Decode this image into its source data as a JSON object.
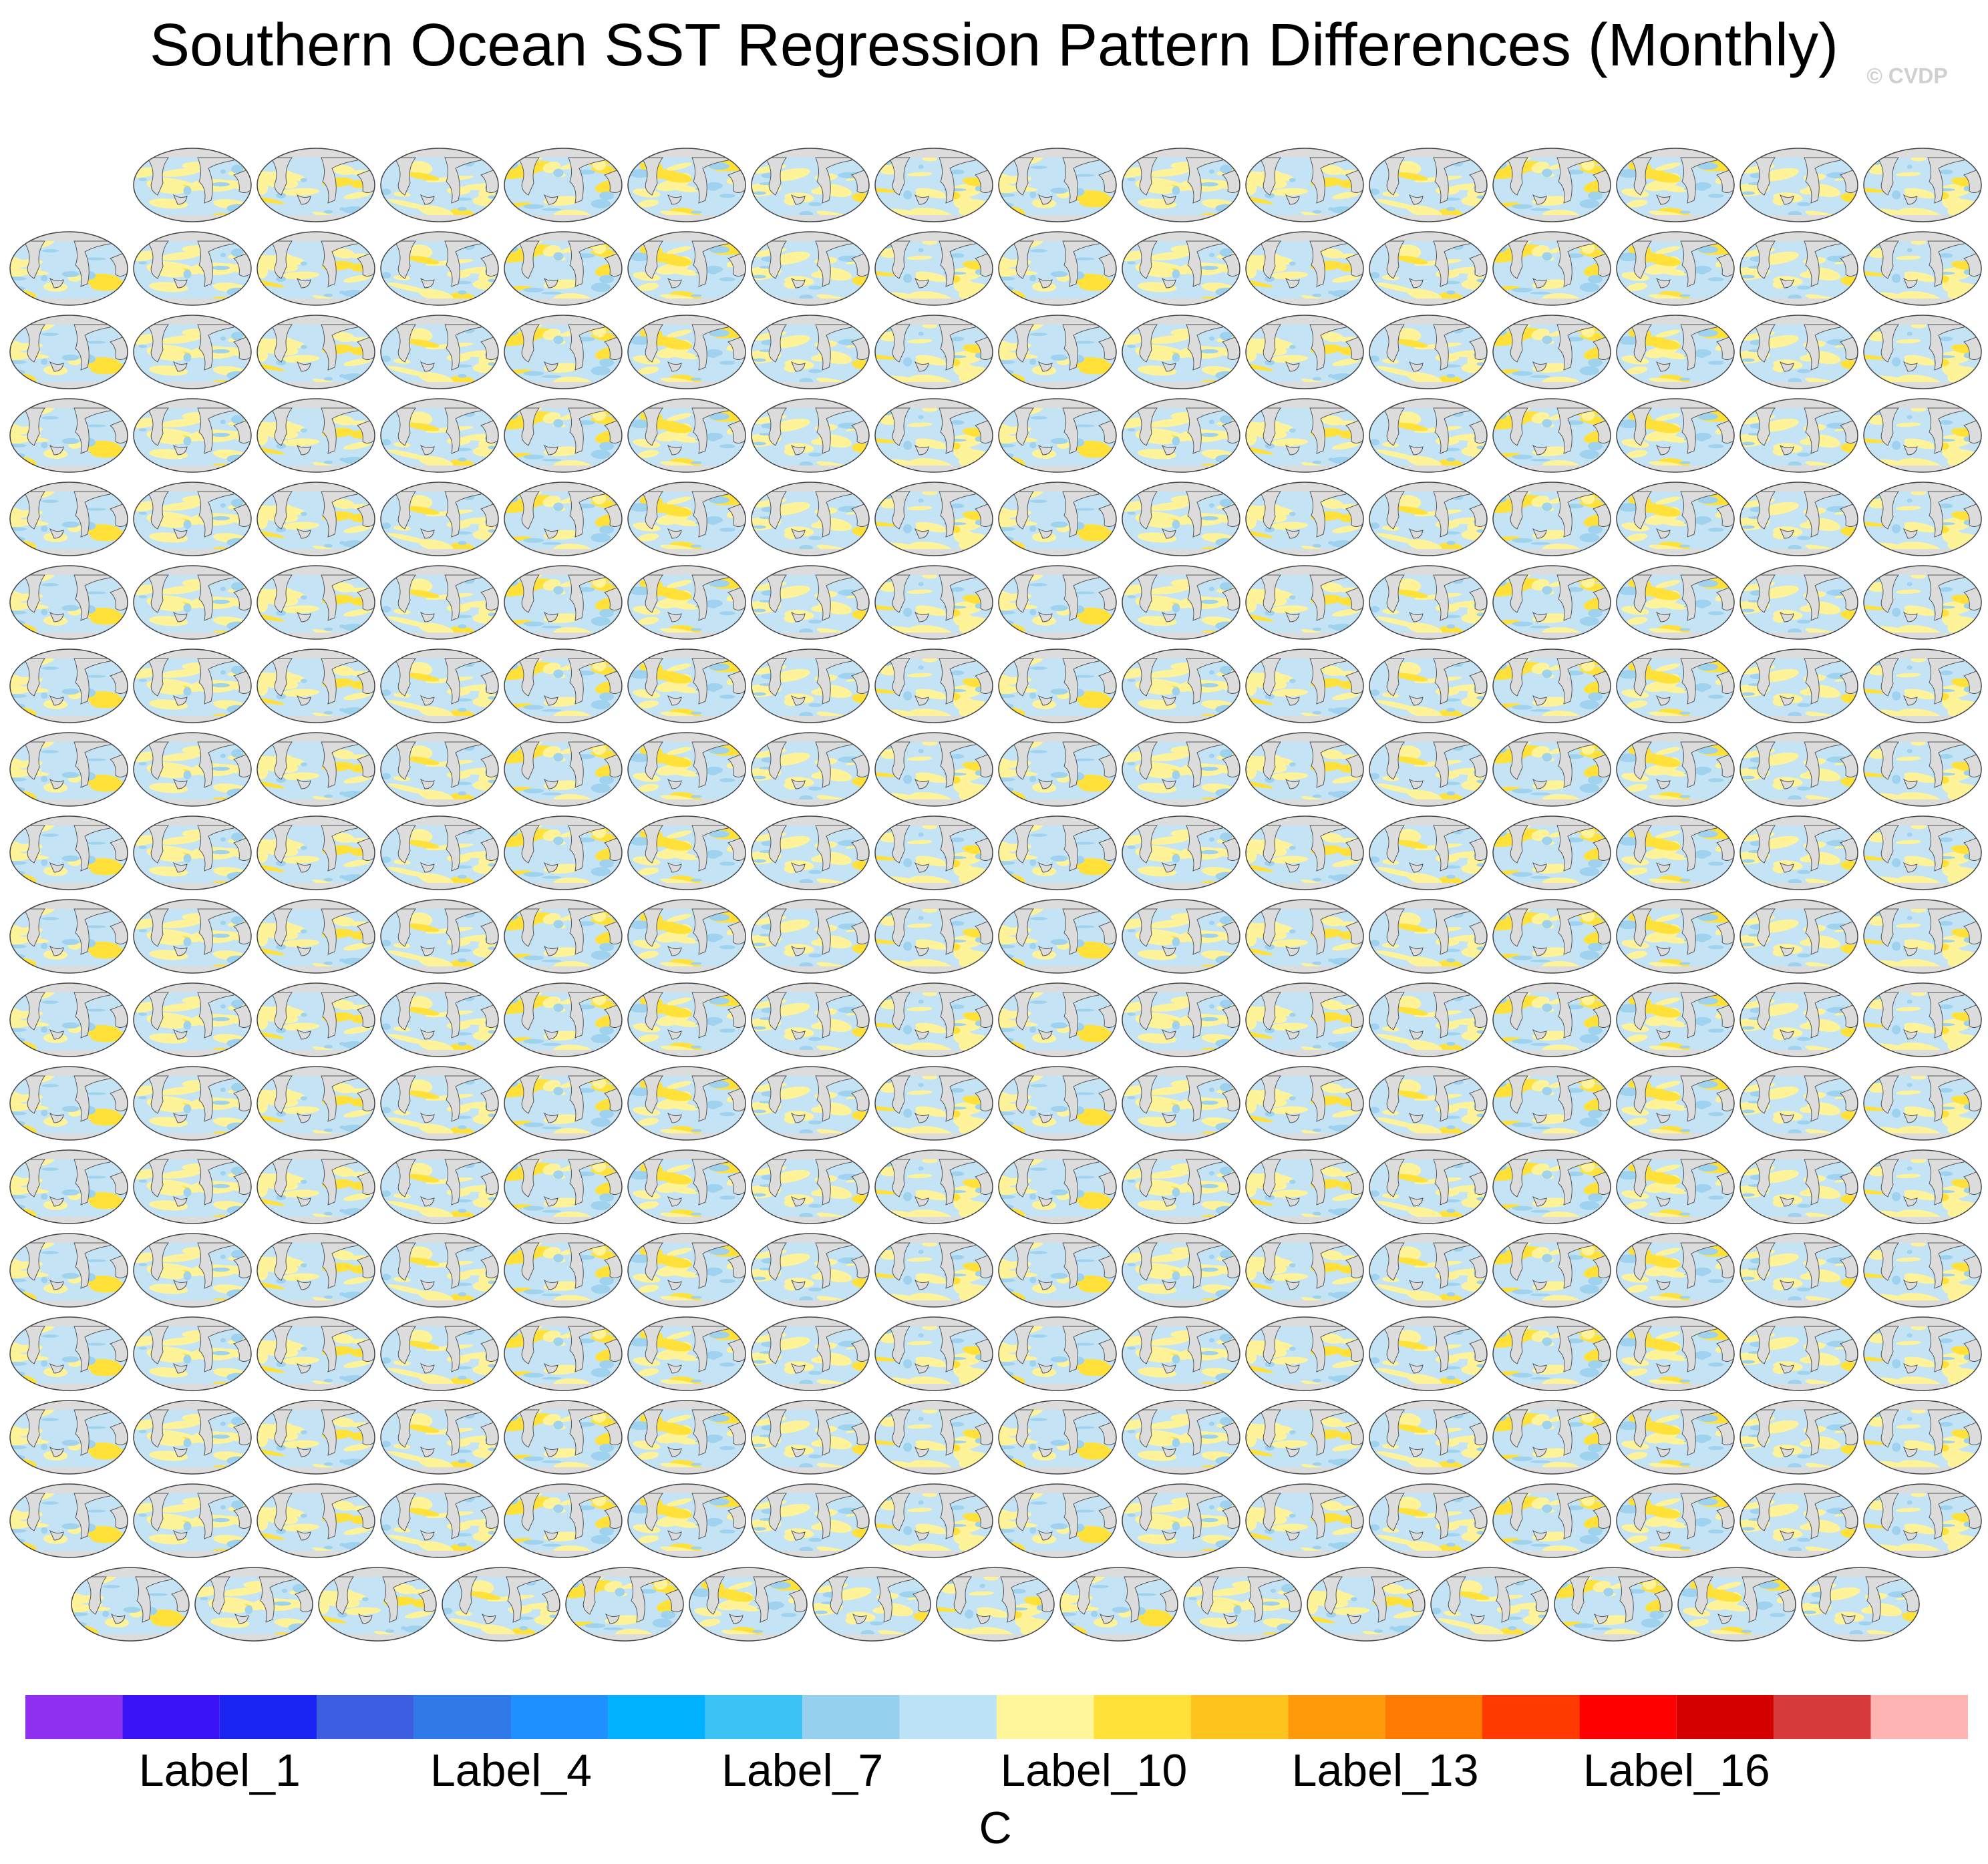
{
  "chart_data": {
    "type": "panel-grid",
    "title": "Southern Ocean SST Regression Pattern Differences (Monthly)",
    "watermark": "© CVDP",
    "colorbar": {
      "colors": [
        "#8f2ff0",
        "#3a12f5",
        "#1a24f2",
        "#3c5ee0",
        "#2f78e8",
        "#1e90ff",
        "#00b2ff",
        "#3cc3f5",
        "#96d0ee",
        "#bde3f7",
        "#fff59a",
        "#ffe13a",
        "#ffc31e",
        "#ff9a0a",
        "#ff7a00",
        "#ff3a00",
        "#ff0000",
        "#d40000",
        "#d63a3a",
        "#ffb4b4"
      ],
      "labels": [
        "Label_1",
        "Label_4",
        "Label_7",
        "Label_10",
        "Label_13",
        "Label_16"
      ],
      "unit": "C"
    }
  }
}
